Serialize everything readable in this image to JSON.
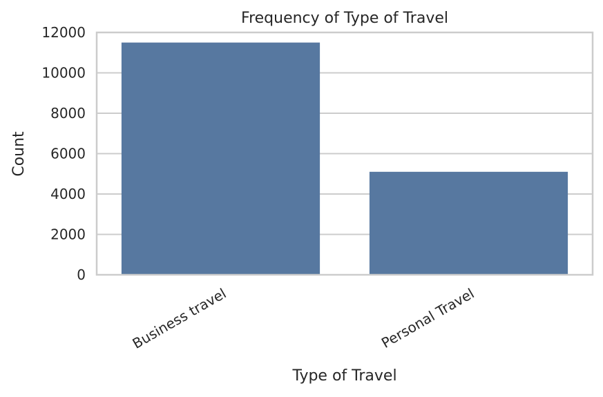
{
  "chart_data": {
    "type": "bar",
    "title": "Frequency of Type of Travel",
    "xlabel": "Type of Travel",
    "ylabel": "Count",
    "categories": [
      "Business travel",
      "Personal Travel"
    ],
    "values": [
      11500,
      5100
    ],
    "ylim": [
      0,
      12000
    ],
    "yticks": [
      0,
      2000,
      4000,
      6000,
      8000,
      10000,
      12000
    ],
    "ytick_labels": [
      "0",
      "2000",
      "4000",
      "6000",
      "8000",
      "10000",
      "12000"
    ],
    "grid": "horizontal",
    "bar_color": "#5778a0"
  }
}
